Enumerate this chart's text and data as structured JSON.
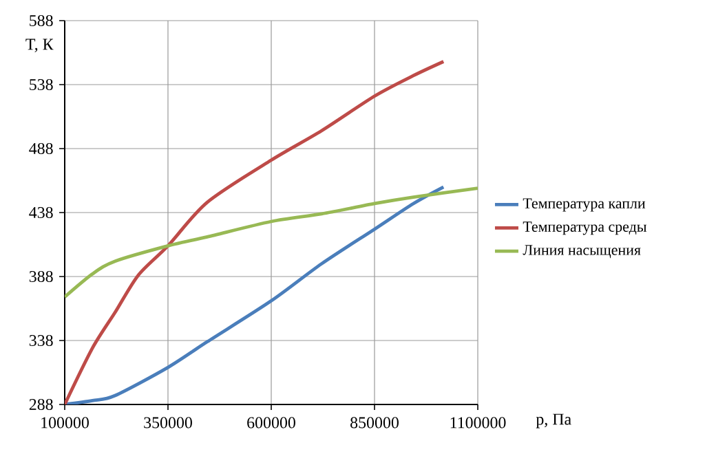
{
  "chart_data": {
    "type": "line",
    "xlabel": "p, Па",
    "ylabel": "T, К",
    "xlim": [
      100000,
      1100000
    ],
    "xticks": [
      100000,
      350000,
      600000,
      850000,
      1100000
    ],
    "ylim": [
      288,
      588
    ],
    "yticks": [
      288,
      338,
      388,
      438,
      488,
      538,
      588
    ],
    "grid": true,
    "legend": "right",
    "marker": "none",
    "line_style": "solid",
    "series": [
      {
        "name": "Температура капли",
        "color": "#4a7ebb",
        "x": [
          100000,
          167000,
          222000,
          350000,
          445000,
          600000,
          722000,
          850000,
          944000,
          1017000
        ],
        "values": [
          288,
          291,
          295,
          317,
          337,
          369,
          398,
          425,
          445,
          458
        ]
      },
      {
        "name": "Температура среды",
        "color": "#be4b48",
        "x": [
          100000,
          167000,
          222000,
          278000,
          350000,
          445000,
          600000,
          722000,
          850000,
          944000,
          1017000
        ],
        "values": [
          288,
          332,
          360,
          389,
          412,
          446,
          479,
          502,
          529,
          545,
          556
        ]
      },
      {
        "name": "Линия насыщения",
        "color": "#98b954",
        "x": [
          100000,
          167000,
          222000,
          350000,
          445000,
          600000,
          722000,
          850000,
          944000,
          1100000
        ],
        "values": [
          372,
          390,
          400,
          412,
          419,
          431,
          437,
          445,
          450,
          457
        ]
      }
    ]
  }
}
